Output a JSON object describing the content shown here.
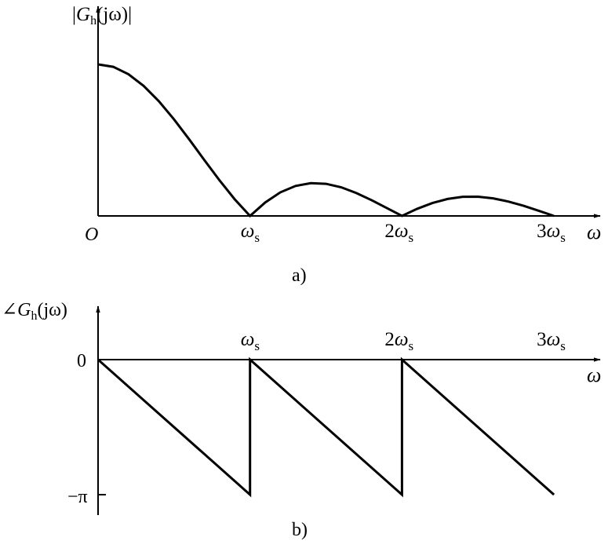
{
  "chart_data": [
    {
      "type": "line",
      "panel_label": "a)",
      "ylabel": {
        "prefix": "|",
        "symbol": "G",
        "sub": "h",
        "arg": "(jω)",
        "suffix": "|"
      },
      "xlabel": "ω",
      "origin_label": "O",
      "x_ticks": [
        {
          "value": 1,
          "coef": "",
          "sym": "ω",
          "sub": "s"
        },
        {
          "value": 2,
          "coef": "2",
          "sym": "ω",
          "sub": "s"
        },
        {
          "value": 3,
          "coef": "3",
          "sym": "ω",
          "sub": "s"
        }
      ],
      "x_unit": "ωs",
      "x": [
        0,
        0.1,
        0.2,
        0.3,
        0.4,
        0.5,
        0.6,
        0.7,
        0.8,
        0.9,
        1,
        1.1,
        1.2,
        1.3,
        1.4,
        1.5,
        1.6,
        1.7,
        1.8,
        1.9,
        2,
        2.1,
        2.2,
        2.3,
        2.4,
        2.5,
        2.6,
        2.7,
        2.8,
        2.9,
        3
      ],
      "y": [
        1,
        0.984,
        0.935,
        0.858,
        0.757,
        0.637,
        0.505,
        0.368,
        0.234,
        0.109,
        0,
        0.089,
        0.156,
        0.198,
        0.216,
        0.212,
        0.189,
        0.151,
        0.104,
        0.052,
        0,
        0.047,
        0.085,
        0.112,
        0.126,
        0.127,
        0.116,
        0.095,
        0.067,
        0.034,
        0
      ]
    },
    {
      "type": "line",
      "panel_label": "b)",
      "ylabel": {
        "prefix": "∠",
        "symbol": "G",
        "sub": "h",
        "arg": "(jω)",
        "suffix": ""
      },
      "xlabel": "ω",
      "y_ticks": [
        {
          "value": 0,
          "label": "0"
        },
        {
          "value": -1,
          "label": "−π"
        }
      ],
      "y_unit": "π",
      "x_ticks": [
        {
          "value": 1,
          "coef": "",
          "sym": "ω",
          "sub": "s"
        },
        {
          "value": 2,
          "coef": "2",
          "sym": "ω",
          "sub": "s"
        },
        {
          "value": 3,
          "coef": "3",
          "sym": "ω",
          "sub": "s"
        }
      ],
      "x_unit": "ωs",
      "x": [
        0,
        1,
        1,
        2,
        2,
        3
      ],
      "y": [
        0,
        -1,
        0,
        -1,
        0,
        -1
      ]
    }
  ]
}
